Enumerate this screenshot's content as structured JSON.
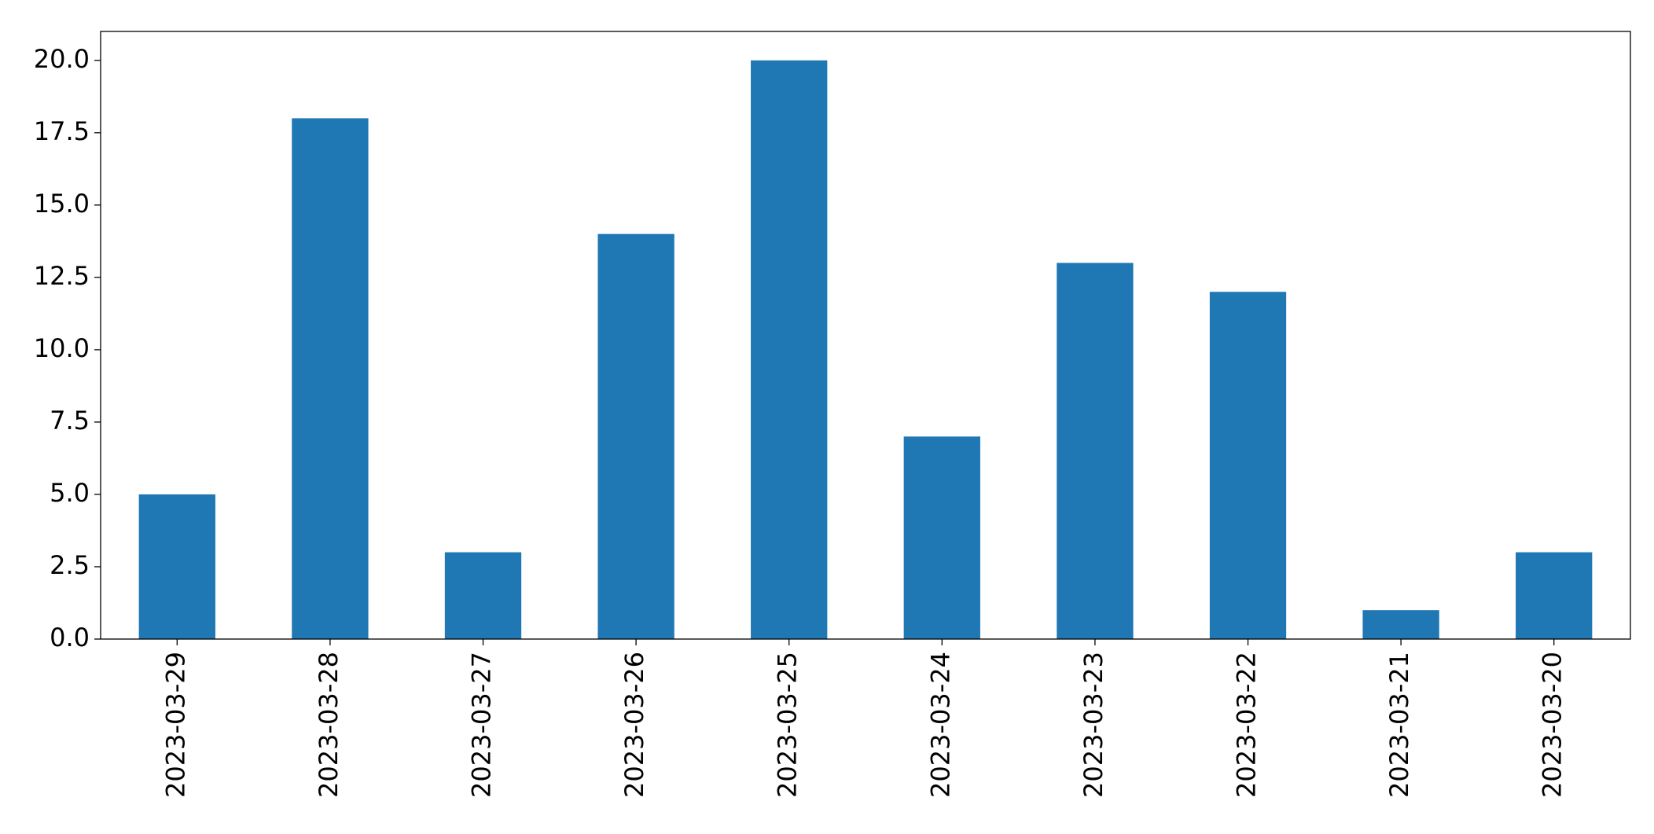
{
  "chart_data": {
    "type": "bar",
    "categories": [
      "2023-03-29",
      "2023-03-28",
      "2023-03-27",
      "2023-03-26",
      "2023-03-25",
      "2023-03-24",
      "2023-03-23",
      "2023-03-22",
      "2023-03-21",
      "2023-03-20"
    ],
    "values": [
      5,
      18,
      3,
      14,
      20,
      7,
      13,
      12,
      1,
      3
    ],
    "color": "#1f77b4",
    "ylim": [
      0,
      21
    ],
    "yticks": [
      {
        "value": 0,
        "label": "0.0"
      },
      2.5,
      {
        "value": 5,
        "label": "5.0"
      },
      7.5,
      {
        "value": 10,
        "label": "10.0"
      },
      12.5,
      {
        "value": 15,
        "label": "15.0"
      },
      17.5,
      {
        "value": 20,
        "label": "20.0"
      }
    ],
    "grid": false
  }
}
